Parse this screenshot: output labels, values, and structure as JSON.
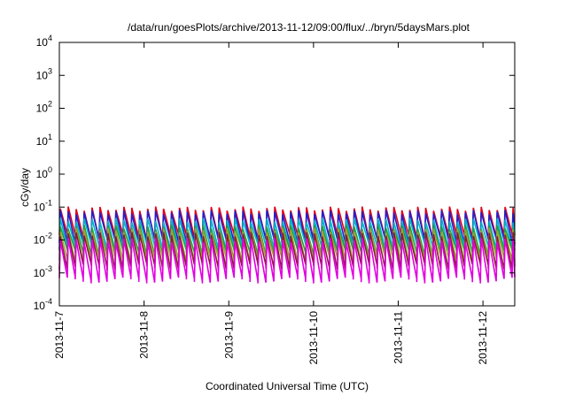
{
  "chart_data": {
    "type": "line",
    "title": "/data/run/goesPlots/archive/2013-11-12/09:00/flux/../bryn/5daysMars.plot",
    "xlabel": "Coordinated Universal Time (UTC)",
    "ylabel": "cGy/day",
    "yscale": "log",
    "ylim": [
      0.0001,
      10000
    ],
    "xlim": [
      "2013-11-07T00:00",
      "2013-11-12T09:00"
    ],
    "grid": false,
    "legend": "none",
    "x_ticks": [
      "2013-11-7",
      "2013-11-8",
      "2013-11-9",
      "2013-11-10",
      "2013-11-11",
      "2013-11-12"
    ],
    "x_tick_dates": [
      "2013-11-07",
      "2013-11-08",
      "2013-11-09",
      "2013-11-10",
      "2013-11-11",
      "2013-11-12"
    ],
    "y_ticks": [
      {
        "value": 0.0001,
        "base": "10",
        "exp": "-4"
      },
      {
        "value": 0.001,
        "base": "10",
        "exp": "-3"
      },
      {
        "value": 0.01,
        "base": "10",
        "exp": "-2"
      },
      {
        "value": 0.1,
        "base": "10",
        "exp": "-1"
      },
      {
        "value": 1,
        "base": "10",
        "exp": "0"
      },
      {
        "value": 10,
        "base": "10",
        "exp": "1"
      },
      {
        "value": 100,
        "base": "10",
        "exp": "2"
      },
      {
        "value": 1000,
        "base": "10",
        "exp": "3"
      },
      {
        "value": 10000,
        "base": "10",
        "exp": "4"
      }
    ],
    "sawtooth_period_hours": 2.25,
    "series": [
      {
        "color": "#e0001a",
        "peak": 0.09,
        "trough": 0.012
      },
      {
        "color": "#2020d0",
        "peak": 0.07,
        "trough": 0.009
      },
      {
        "color": "#00b4c8",
        "peak": 0.04,
        "trough": 0.006
      },
      {
        "color": "#20a040",
        "peak": 0.025,
        "trough": 0.004
      },
      {
        "color": "#a0a030",
        "peak": 0.02,
        "trough": 0.0025
      },
      {
        "color": "#8b1a3a",
        "peak": 0.015,
        "trough": 0.0015
      },
      {
        "color": "#e000e0",
        "peak": 0.01,
        "trough": 0.0006
      }
    ]
  }
}
